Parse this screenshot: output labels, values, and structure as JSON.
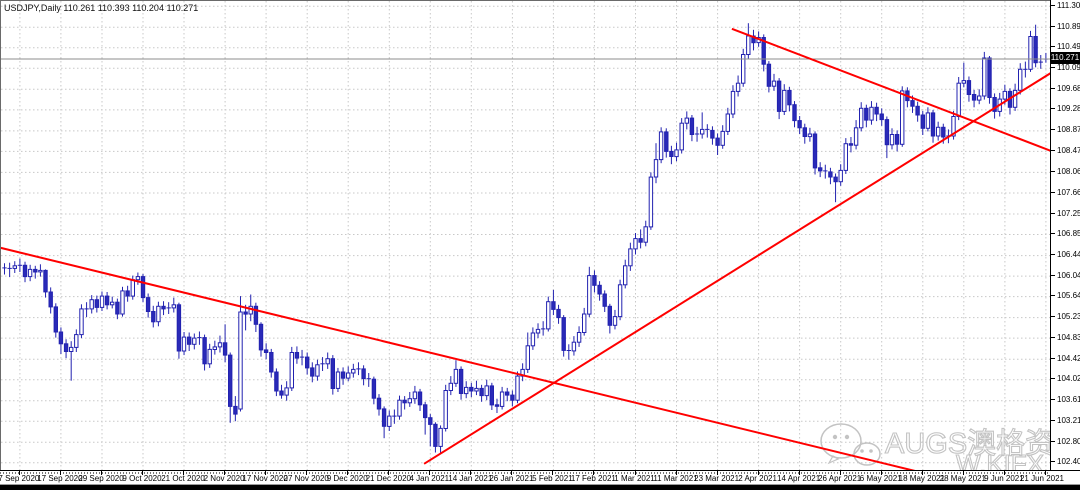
{
  "header": {
    "title": "USDJPY,Daily 110.261 110.393 110.204 110.271"
  },
  "price_axis": {
    "labels": [
      "111.300",
      "110.890",
      "110.490",
      "110.090",
      "109.680",
      "109.280",
      "108.870",
      "108.470",
      "108.060",
      "107.660",
      "107.250",
      "106.850",
      "106.440",
      "106.040",
      "105.640",
      "105.230",
      "104.830",
      "104.420",
      "104.020",
      "103.610",
      "103.210",
      "102.800",
      "102.400"
    ],
    "current_price": "110.271"
  },
  "date_axis": {
    "labels": [
      "7 Sep 2020",
      "17 Sep 2020",
      "29 Sep 2020",
      "9 Oct 2020",
      "21 Oct 2020",
      "2 Nov 2020",
      "17 Nov 2020",
      "27 Nov 2020",
      "9 Dec 2020",
      "21 Dec 2020",
      "4 Jan 2021",
      "14 Jan 2021",
      "26 Jan 2021",
      "5 Feb 2021",
      "17 Feb 2021",
      "1 Mar 2021",
      "11 Mar 2021",
      "23 Mar 2021",
      "2 Apr 2021",
      "14 Apr 2021",
      "26 Apr 2021",
      "6 May 2021",
      "18 May 2021",
      "28 May 2021",
      "9 Jun 2021",
      "21 Jun 2021"
    ]
  },
  "watermark": {
    "brand": "AUGS澳格资讯",
    "secondary": "W.KIFX",
    "logo": "wechat-icon"
  },
  "colors": {
    "background": "#ffffff",
    "grid": "#c8c8c8",
    "candle_stroke": "#2222b0",
    "up_fill": "#ffffff",
    "down_fill": "#2a2ab8",
    "trendline": "#ff0000",
    "price_line": "#8c8c8c",
    "axis_text": "#000000",
    "current_price_bg": "#000000",
    "current_price_text": "#ffffff"
  },
  "chart_data": {
    "type": "candlestick",
    "symbol": "USDJPY",
    "timeframe": "Daily",
    "title": "USDJPY,Daily",
    "last_bar": {
      "open": 110.261,
      "high": 110.393,
      "low": 110.204,
      "close": 110.271
    },
    "y_axis": {
      "min": 102.4,
      "max": 111.3,
      "tick_step": 0.41,
      "grid": true
    },
    "x_axis": {
      "bars_per_tick": 8,
      "first_tick_bar_index": 3,
      "tick_labels_ref": "date_axis.labels"
    },
    "trendlines": [
      {
        "name": "downtrend-from-sep-high",
        "i1": -0.7,
        "p1": 106.59,
        "i2": 177.5,
        "p2": 102.24
      },
      {
        "name": "uptrend-from-jan-low",
        "i1": 81.8,
        "p1": 102.38,
        "i2": 204.0,
        "p2": 110.0
      },
      {
        "name": "downtrend-from-mar-high",
        "i1": 141.8,
        "p1": 110.86,
        "i2": 204.0,
        "p2": 108.48
      }
    ],
    "ohlc": [
      [
        106.2,
        106.29,
        106.07,
        106.18
      ],
      [
        106.18,
        106.3,
        106.02,
        106.19
      ],
      [
        106.19,
        106.33,
        106.1,
        106.24
      ],
      [
        106.24,
        106.38,
        106.12,
        106.25
      ],
      [
        106.25,
        106.32,
        105.92,
        106.03
      ],
      [
        106.03,
        106.26,
        105.94,
        106.17
      ],
      [
        106.17,
        106.24,
        105.99,
        106.12
      ],
      [
        106.12,
        106.27,
        106.03,
        106.15
      ],
      [
        106.15,
        106.17,
        105.62,
        105.73
      ],
      [
        105.73,
        105.82,
        105.31,
        105.44
      ],
      [
        105.44,
        105.51,
        104.84,
        104.95
      ],
      [
        104.95,
        105.04,
        104.52,
        104.72
      ],
      [
        104.72,
        104.81,
        104.44,
        104.57
      ],
      [
        104.57,
        104.77,
        104.0,
        104.65
      ],
      [
        104.65,
        105.0,
        104.56,
        104.9
      ],
      [
        104.9,
        105.49,
        104.83,
        105.4
      ],
      [
        105.4,
        105.53,
        105.24,
        105.4
      ],
      [
        105.4,
        105.67,
        105.31,
        105.58
      ],
      [
        105.58,
        105.66,
        105.33,
        105.43
      ],
      [
        105.43,
        105.74,
        105.36,
        105.65
      ],
      [
        105.65,
        105.73,
        105.39,
        105.48
      ],
      [
        105.48,
        105.64,
        105.41,
        105.53
      ],
      [
        105.53,
        105.6,
        105.2,
        105.3
      ],
      [
        105.3,
        105.83,
        105.25,
        105.75
      ],
      [
        105.75,
        105.85,
        105.54,
        105.65
      ],
      [
        105.65,
        106.05,
        105.58,
        105.97
      ],
      [
        105.97,
        106.11,
        105.87,
        106.03
      ],
      [
        106.03,
        106.08,
        105.53,
        105.62
      ],
      [
        105.62,
        105.7,
        105.23,
        105.35
      ],
      [
        105.35,
        105.46,
        105.04,
        105.15
      ],
      [
        105.15,
        105.54,
        105.06,
        105.45
      ],
      [
        105.45,
        105.55,
        105.28,
        105.4
      ],
      [
        105.4,
        105.53,
        105.3,
        105.42
      ],
      [
        105.42,
        105.62,
        105.33,
        105.48
      ],
      [
        105.48,
        105.52,
        104.43,
        104.58
      ],
      [
        104.58,
        104.95,
        104.5,
        104.85
      ],
      [
        104.85,
        104.94,
        104.58,
        104.71
      ],
      [
        104.71,
        104.92,
        104.61,
        104.83
      ],
      [
        104.83,
        104.96,
        104.7,
        104.84
      ],
      [
        104.84,
        104.9,
        104.2,
        104.33
      ],
      [
        104.33,
        104.72,
        104.25,
        104.61
      ],
      [
        104.61,
        104.78,
        104.51,
        104.66
      ],
      [
        104.66,
        104.88,
        104.55,
        104.74
      ],
      [
        104.74,
        105.1,
        104.36,
        104.5
      ],
      [
        104.5,
        104.55,
        103.18,
        103.5
      ],
      [
        103.5,
        103.7,
        103.21,
        103.35
      ],
      [
        103.45,
        105.65,
        103.4,
        105.34
      ],
      [
        105.34,
        105.48,
        104.98,
        105.3
      ],
      [
        105.3,
        105.68,
        105.16,
        105.45
      ],
      [
        105.45,
        105.52,
        104.95,
        105.1
      ],
      [
        105.1,
        105.14,
        104.47,
        104.6
      ],
      [
        104.6,
        104.73,
        104.42,
        104.55
      ],
      [
        104.55,
        104.62,
        104.06,
        104.17
      ],
      [
        104.17,
        104.24,
        103.7,
        103.8
      ],
      [
        103.8,
        103.92,
        103.65,
        103.72
      ],
      [
        103.72,
        103.99,
        103.61,
        103.86
      ],
      [
        103.86,
        104.66,
        103.8,
        104.55
      ],
      [
        104.55,
        104.67,
        104.33,
        104.44
      ],
      [
        104.44,
        104.6,
        104.3,
        104.46
      ],
      [
        104.46,
        104.55,
        104.12,
        104.25
      ],
      [
        104.25,
        104.36,
        103.97,
        104.09
      ],
      [
        104.09,
        104.41,
        104.0,
        104.31
      ],
      [
        104.31,
        104.46,
        104.19,
        104.33
      ],
      [
        104.33,
        104.55,
        104.23,
        104.43
      ],
      [
        104.43,
        104.5,
        103.73,
        103.85
      ],
      [
        103.85,
        104.25,
        103.78,
        104.17
      ],
      [
        104.17,
        104.26,
        103.92,
        104.05
      ],
      [
        104.05,
        104.28,
        103.99,
        104.15
      ],
      [
        104.15,
        104.33,
        104.06,
        104.22
      ],
      [
        104.22,
        104.36,
        104.11,
        104.23
      ],
      [
        104.23,
        104.3,
        103.91,
        104.04
      ],
      [
        104.04,
        104.15,
        103.88,
        104.03
      ],
      [
        104.03,
        104.08,
        103.54,
        103.66
      ],
      [
        103.66,
        103.74,
        103.32,
        103.45
      ],
      [
        103.45,
        103.5,
        102.88,
        103.11
      ],
      [
        103.11,
        103.42,
        103.02,
        103.31
      ],
      [
        103.31,
        103.44,
        103.16,
        103.31
      ],
      [
        103.31,
        103.71,
        103.24,
        103.62
      ],
      [
        103.62,
        103.7,
        103.44,
        103.57
      ],
      [
        103.57,
        103.78,
        103.49,
        103.65
      ],
      [
        103.65,
        103.9,
        103.55,
        103.78
      ],
      [
        103.78,
        103.84,
        103.41,
        103.53
      ],
      [
        103.53,
        103.59,
        102.95,
        103.28
      ],
      [
        103.28,
        103.35,
        102.72,
        103.15
      ],
      [
        103.15,
        103.19,
        102.6,
        102.72
      ],
      [
        102.72,
        103.13,
        102.59,
        103.07
      ],
      [
        103.07,
        103.92,
        103.01,
        103.81
      ],
      [
        103.81,
        104.09,
        103.72,
        103.95
      ],
      [
        103.95,
        104.4,
        103.88,
        104.22
      ],
      [
        104.22,
        104.28,
        103.63,
        103.75
      ],
      [
        103.75,
        103.99,
        103.66,
        103.87
      ],
      [
        103.87,
        103.96,
        103.68,
        103.8
      ],
      [
        103.8,
        104.0,
        103.72,
        103.85
      ],
      [
        103.85,
        103.92,
        103.59,
        103.71
      ],
      [
        103.71,
        104.02,
        103.62,
        103.9
      ],
      [
        103.9,
        103.96,
        103.43,
        103.53
      ],
      [
        103.53,
        103.65,
        103.37,
        103.5
      ],
      [
        103.5,
        103.88,
        103.44,
        103.78
      ],
      [
        103.78,
        103.86,
        103.6,
        103.72
      ],
      [
        103.72,
        103.81,
        103.5,
        103.62
      ],
      [
        103.62,
        104.18,
        103.56,
        104.09
      ],
      [
        104.09,
        104.34,
        103.99,
        104.22
      ],
      [
        104.22,
        104.94,
        104.15,
        104.68
      ],
      [
        104.68,
        105.04,
        104.6,
        104.93
      ],
      [
        104.93,
        105.12,
        104.83,
        105.0
      ],
      [
        105.0,
        105.16,
        104.88,
        105.01
      ],
      [
        105.01,
        105.64,
        104.96,
        105.54
      ],
      [
        105.54,
        105.77,
        105.28,
        105.39
      ],
      [
        105.39,
        105.48,
        105.11,
        105.23
      ],
      [
        105.23,
        105.28,
        104.47,
        104.59
      ],
      [
        104.59,
        104.71,
        104.41,
        104.58
      ],
      [
        104.58,
        104.87,
        104.49,
        104.75
      ],
      [
        104.75,
        105.06,
        104.66,
        104.94
      ],
      [
        104.94,
        105.42,
        104.88,
        105.3
      ],
      [
        105.3,
        106.22,
        105.24,
        106.05
      ],
      [
        106.05,
        106.15,
        105.72,
        105.86
      ],
      [
        105.86,
        105.94,
        105.56,
        105.69
      ],
      [
        105.69,
        105.76,
        105.34,
        105.45
      ],
      [
        105.45,
        105.5,
        104.92,
        105.08
      ],
      [
        105.08,
        105.38,
        105.0,
        105.25
      ],
      [
        105.25,
        105.97,
        105.18,
        105.87
      ],
      [
        105.87,
        106.36,
        105.8,
        106.24
      ],
      [
        106.24,
        106.69,
        106.14,
        106.57
      ],
      [
        106.57,
        106.88,
        106.46,
        106.77
      ],
      [
        106.77,
        106.95,
        106.58,
        106.7
      ],
      [
        106.7,
        107.12,
        106.62,
        107.0
      ],
      [
        107.0,
        108.06,
        106.94,
        107.97
      ],
      [
        107.97,
        108.63,
        107.85,
        108.31
      ],
      [
        108.31,
        108.94,
        108.24,
        108.85
      ],
      [
        108.85,
        108.92,
        108.35,
        108.47
      ],
      [
        108.47,
        108.58,
        108.22,
        108.37
      ],
      [
        108.37,
        108.64,
        108.28,
        108.5
      ],
      [
        108.5,
        109.12,
        108.43,
        109.02
      ],
      [
        109.02,
        109.25,
        108.9,
        109.12
      ],
      [
        109.12,
        109.18,
        108.67,
        108.8
      ],
      [
        108.8,
        108.95,
        108.66,
        108.81
      ],
      [
        108.81,
        109.23,
        108.72,
        108.9
      ],
      [
        108.9,
        109.0,
        108.74,
        108.88
      ],
      [
        108.88,
        108.96,
        108.6,
        108.73
      ],
      [
        108.73,
        108.82,
        108.4,
        108.59
      ],
      [
        108.59,
        108.98,
        108.52,
        108.86
      ],
      [
        108.86,
        109.32,
        108.79,
        109.2
      ],
      [
        109.2,
        109.76,
        109.12,
        109.64
      ],
      [
        109.64,
        109.95,
        109.54,
        109.8
      ],
      [
        109.8,
        110.47,
        109.73,
        110.36
      ],
      [
        110.36,
        110.97,
        110.28,
        110.72
      ],
      [
        110.72,
        110.84,
        110.44,
        110.59
      ],
      [
        110.59,
        110.81,
        110.51,
        110.69
      ],
      [
        110.69,
        110.75,
        110.03,
        110.17
      ],
      [
        110.17,
        110.23,
        109.62,
        109.74
      ],
      [
        109.74,
        109.98,
        109.65,
        109.84
      ],
      [
        109.84,
        109.9,
        109.1,
        109.25
      ],
      [
        109.25,
        109.78,
        109.18,
        109.66
      ],
      [
        109.66,
        109.73,
        109.25,
        109.38
      ],
      [
        109.38,
        109.45,
        108.94,
        109.07
      ],
      [
        109.07,
        109.16,
        108.81,
        108.93
      ],
      [
        108.93,
        109.01,
        108.62,
        108.76
      ],
      [
        108.76,
        108.93,
        108.66,
        108.81
      ],
      [
        108.81,
        108.86,
        108.02,
        108.15
      ],
      [
        108.15,
        108.26,
        107.97,
        108.09
      ],
      [
        108.09,
        108.21,
        107.94,
        108.07
      ],
      [
        108.07,
        108.15,
        107.83,
        107.97
      ],
      [
        107.97,
        108.04,
        107.48,
        107.88
      ],
      [
        107.88,
        108.22,
        107.8,
        108.1
      ],
      [
        108.1,
        108.73,
        108.03,
        108.62
      ],
      [
        108.62,
        108.75,
        108.45,
        108.59
      ],
      [
        108.59,
        109.08,
        108.51,
        108.93
      ],
      [
        108.93,
        109.43,
        108.86,
        109.31
      ],
      [
        109.31,
        109.38,
        108.94,
        109.08
      ],
      [
        109.08,
        109.45,
        108.99,
        109.33
      ],
      [
        109.33,
        109.42,
        109.06,
        109.2
      ],
      [
        109.2,
        109.31,
        108.97,
        109.09
      ],
      [
        109.09,
        109.15,
        108.34,
        108.6
      ],
      [
        108.6,
        108.92,
        108.51,
        108.8
      ],
      [
        108.8,
        108.88,
        108.47,
        108.61
      ],
      [
        108.61,
        109.74,
        108.56,
        109.65
      ],
      [
        109.65,
        109.72,
        109.33,
        109.46
      ],
      [
        109.46,
        109.56,
        109.22,
        109.35
      ],
      [
        109.35,
        109.44,
        109.05,
        109.18
      ],
      [
        109.18,
        109.26,
        108.79,
        108.92
      ],
      [
        108.92,
        109.33,
        108.86,
        109.22
      ],
      [
        109.22,
        109.28,
        108.64,
        108.77
      ],
      [
        108.77,
        109.05,
        108.68,
        108.94
      ],
      [
        108.94,
        109.01,
        108.62,
        108.75
      ],
      [
        108.75,
        108.9,
        108.63,
        108.77
      ],
      [
        108.77,
        109.26,
        108.7,
        109.15
      ],
      [
        109.15,
        109.92,
        109.08,
        109.8
      ],
      [
        109.8,
        110.2,
        109.72,
        109.85
      ],
      [
        109.85,
        109.93,
        109.44,
        109.58
      ],
      [
        109.58,
        109.67,
        109.33,
        109.47
      ],
      [
        109.47,
        109.68,
        109.39,
        109.55
      ],
      [
        109.55,
        110.41,
        109.48,
        110.29
      ],
      [
        110.29,
        110.33,
        109.4,
        109.52
      ],
      [
        109.52,
        109.6,
        109.11,
        109.25
      ],
      [
        109.25,
        109.61,
        109.15,
        109.49
      ],
      [
        109.49,
        109.77,
        109.38,
        109.64
      ],
      [
        109.64,
        109.7,
        109.19,
        109.33
      ],
      [
        109.33,
        109.79,
        109.26,
        109.66
      ],
      [
        109.66,
        110.19,
        109.58,
        110.07
      ],
      [
        110.07,
        110.22,
        109.91,
        110.07
      ],
      [
        110.07,
        110.82,
        110.02,
        110.71
      ],
      [
        110.71,
        110.94,
        110.11,
        110.2
      ],
      [
        110.2,
        110.35,
        110.08,
        110.21
      ],
      [
        110.26,
        110.39,
        110.2,
        110.27
      ]
    ]
  }
}
